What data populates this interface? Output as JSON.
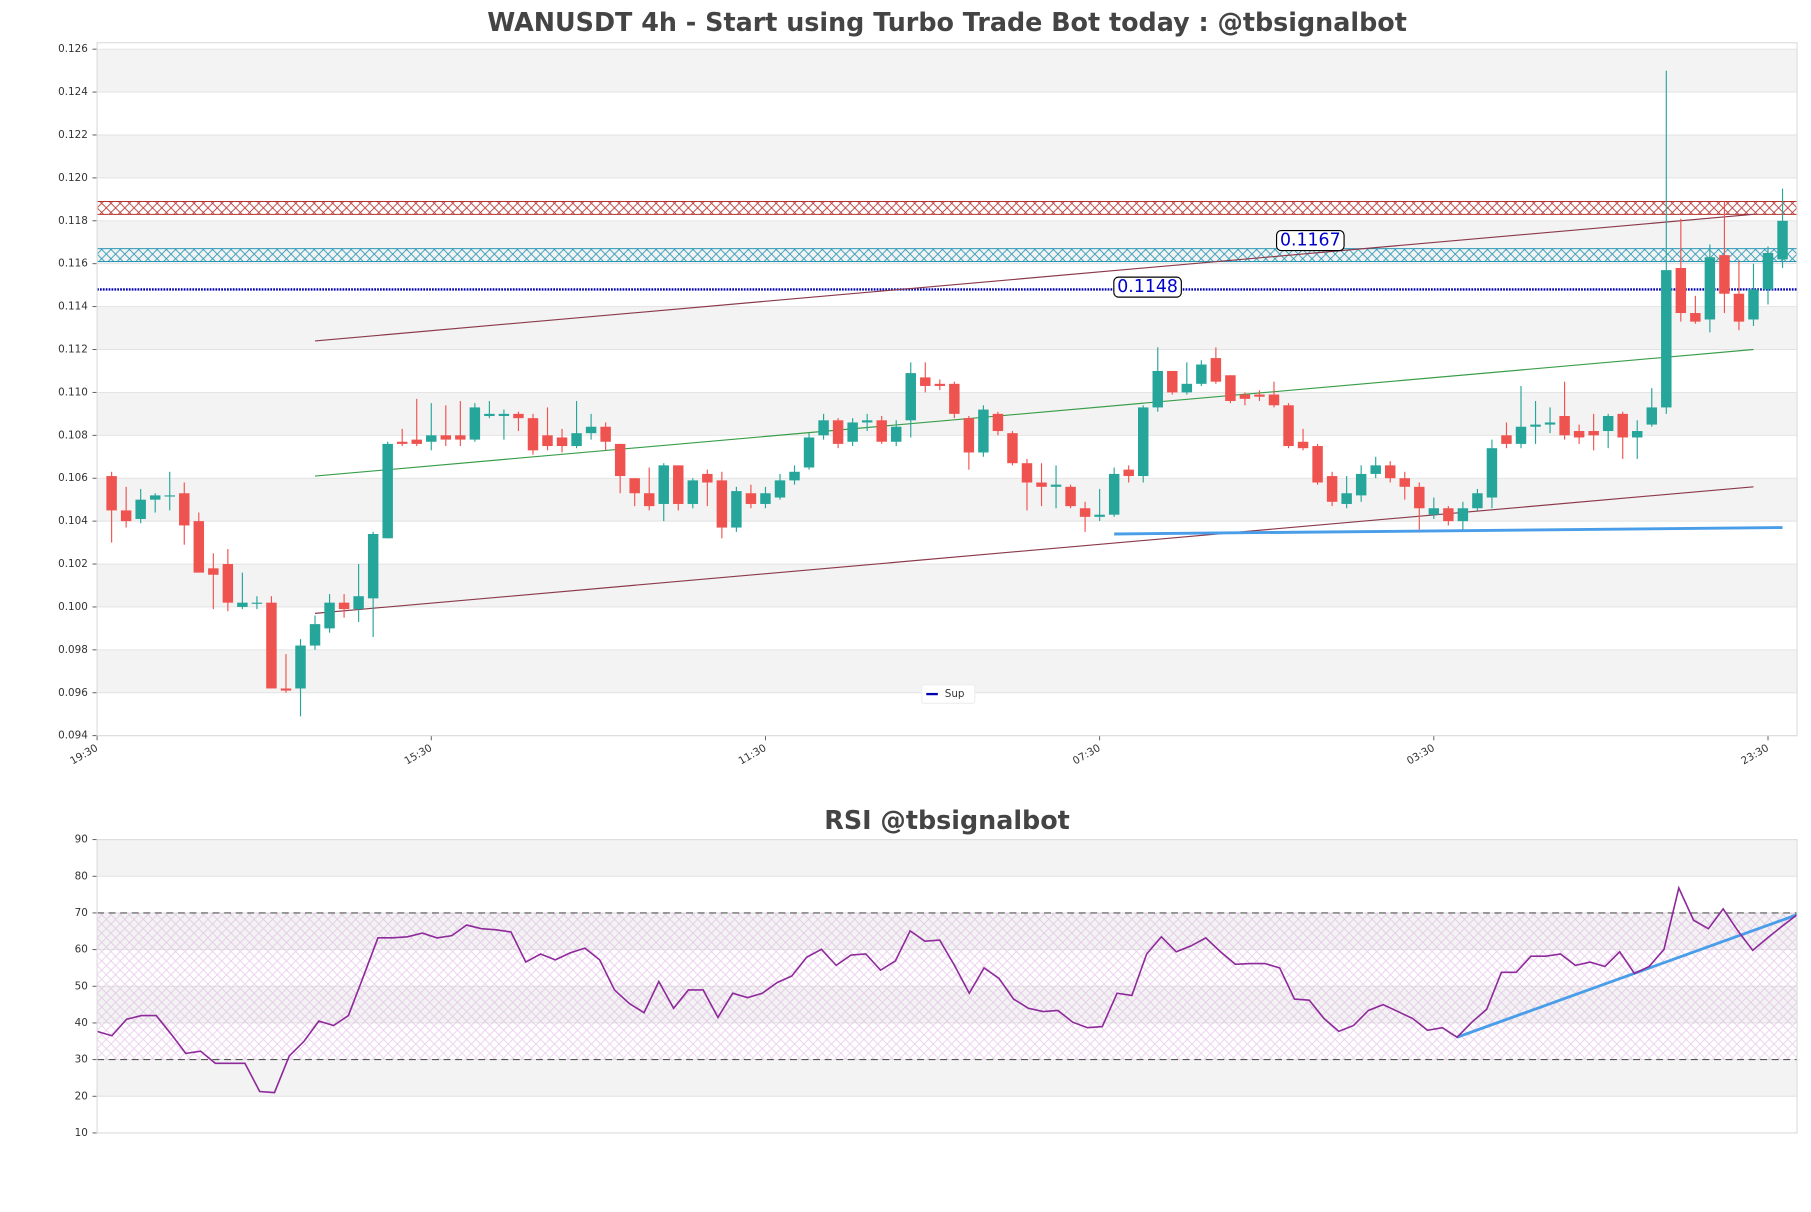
{
  "chart_data": [
    {
      "type": "candlestick",
      "title": "WANUSDT 4h - Start using Turbo Trade Bot today : @tbsignalbot",
      "open": [
        0.1061,
        0.1045,
        0.1041,
        0.105,
        0.1052,
        0.1053,
        0.104,
        0.1018,
        0.102,
        0.1,
        0.1002,
        0.1002,
        0.0962,
        0.0962,
        0.0982,
        0.099,
        0.1002,
        0.0999,
        0.1004,
        0.1032,
        0.1077,
        0.1078,
        0.1077,
        0.108,
        0.108,
        0.1078,
        0.1089,
        0.1089,
        0.109,
        0.1088,
        0.108,
        0.1079,
        0.1075,
        0.1081,
        0.1084,
        0.1076,
        0.106,
        0.1053,
        0.1048,
        0.1066,
        0.1048,
        0.1062,
        0.1059,
        0.1037,
        0.1053,
        0.1048,
        0.1051,
        0.1059,
        0.1065,
        0.108,
        0.1087,
        0.1077,
        0.1086,
        0.1087,
        0.1077,
        0.1087,
        0.1107,
        0.1104,
        0.1104,
        0.1088,
        0.1072,
        0.109,
        0.1081,
        0.1067,
        0.1058,
        0.1056,
        0.1056,
        0.1046,
        0.1042,
        0.1043,
        0.1064,
        0.1061,
        0.1093,
        0.111,
        0.11,
        0.1104,
        0.1116,
        0.1108,
        0.1099,
        0.1099,
        0.1099,
        0.1094,
        0.1077,
        0.1075,
        0.1061,
        0.1048,
        0.1052,
        0.1062,
        0.1066,
        0.106,
        0.1056,
        0.1043,
        0.1046,
        0.104,
        0.1046,
        0.1051,
        0.108,
        0.1076,
        0.1084,
        0.1085,
        0.1089,
        0.1082,
        0.1082,
        0.1082,
        0.109,
        0.1079,
        0.1085,
        0.1093,
        0.1158,
        0.1137,
        0.1134,
        0.1164,
        0.1146,
        0.1134,
        0.1148,
        0.1162
      ],
      "high": [
        0.1063,
        0.1056,
        0.1055,
        0.1053,
        0.1063,
        0.1058,
        0.1044,
        0.1025,
        0.1027,
        0.1016,
        0.1005,
        0.1005,
        0.0978,
        0.0985,
        0.0996,
        0.1006,
        0.1006,
        0.102,
        0.1035,
        0.1077,
        0.1083,
        0.1097,
        0.1095,
        0.1094,
        0.1096,
        0.1095,
        0.1096,
        0.1092,
        0.1091,
        0.109,
        0.1093,
        0.1083,
        0.1096,
        0.109,
        0.1086,
        0.1076,
        0.106,
        0.1065,
        0.1067,
        0.1066,
        0.106,
        0.1064,
        0.1063,
        0.1056,
        0.1057,
        0.1056,
        0.1062,
        0.1066,
        0.1081,
        0.109,
        0.1088,
        0.1088,
        0.109,
        0.1089,
        0.1087,
        0.1114,
        0.1114,
        0.1106,
        0.1105,
        0.1089,
        0.1094,
        0.1091,
        0.1082,
        0.1069,
        0.1067,
        0.1066,
        0.1057,
        0.1049,
        0.1055,
        0.1065,
        0.1066,
        0.1094,
        0.1121,
        0.111,
        0.1114,
        0.1115,
        0.1121,
        0.1108,
        0.11,
        0.1101,
        0.1105,
        0.1095,
        0.1083,
        0.1076,
        0.1063,
        0.1061,
        0.1066,
        0.107,
        0.1068,
        0.1063,
        0.1058,
        0.1051,
        0.1047,
        0.1049,
        0.1055,
        0.1078,
        0.1086,
        0.1103,
        0.1096,
        0.1093,
        0.1105,
        0.1085,
        0.109,
        0.109,
        0.1091,
        0.1087,
        0.1102,
        0.125,
        0.1181,
        0.1145,
        0.1169,
        0.1189,
        0.1161,
        0.116,
        0.1168,
        0.1195
      ],
      "low": [
        0.103,
        0.1037,
        0.1039,
        0.1044,
        0.1045,
        0.1029,
        0.1016,
        0.0999,
        0.0998,
        0.0999,
        0.0999,
        0.0962,
        0.096,
        0.0949,
        0.098,
        0.0988,
        0.0995,
        0.0993,
        0.0986,
        0.1032,
        0.1075,
        0.1075,
        0.1073,
        0.1075,
        0.1075,
        0.1077,
        0.1088,
        0.1078,
        0.1082,
        0.1071,
        0.1073,
        0.1072,
        0.1074,
        0.1078,
        0.1073,
        0.1053,
        0.1047,
        0.1045,
        0.104,
        0.1045,
        0.1046,
        0.1047,
        0.1032,
        0.1035,
        0.1046,
        0.1046,
        0.105,
        0.1057,
        0.1064,
        0.1078,
        0.1074,
        0.1075,
        0.1082,
        0.1076,
        0.1075,
        0.1079,
        0.11,
        0.1101,
        0.1088,
        0.1064,
        0.107,
        0.108,
        0.1066,
        0.1045,
        0.1047,
        0.1046,
        0.1046,
        0.1035,
        0.104,
        0.1042,
        0.1058,
        0.1058,
        0.1091,
        0.1099,
        0.1099,
        0.1103,
        0.1104,
        0.1095,
        0.1094,
        0.1096,
        0.1093,
        0.1074,
        0.1073,
        0.1057,
        0.1047,
        0.1046,
        0.1049,
        0.106,
        0.1058,
        0.105,
        0.1036,
        0.1041,
        0.1038,
        0.1036,
        0.1045,
        0.1046,
        0.1074,
        0.1074,
        0.1076,
        0.1081,
        0.1078,
        0.1076,
        0.1073,
        0.1074,
        0.1069,
        0.1069,
        0.1084,
        0.109,
        0.1133,
        0.1132,
        0.1128,
        0.1137,
        0.1129,
        0.1131,
        0.1141,
        0.1158
      ],
      "close": [
        0.1045,
        0.104,
        0.105,
        0.1052,
        0.1052,
        0.1038,
        0.1016,
        0.1015,
        0.1002,
        0.1002,
        0.1002,
        0.0962,
        0.0961,
        0.0982,
        0.0992,
        0.1002,
        0.0999,
        0.1005,
        0.1034,
        0.1076,
        0.1076,
        0.1076,
        0.108,
        0.1078,
        0.1078,
        0.1093,
        0.109,
        0.109,
        0.1088,
        0.1073,
        0.1075,
        0.1075,
        0.1081,
        0.1084,
        0.1077,
        0.1061,
        0.1053,
        0.1047,
        0.1066,
        0.1048,
        0.1059,
        0.1058,
        0.1037,
        0.1054,
        0.1048,
        0.1053,
        0.1059,
        0.1063,
        0.1079,
        0.1087,
        0.1076,
        0.1086,
        0.1087,
        0.1077,
        0.1084,
        0.1109,
        0.1103,
        0.1103,
        0.109,
        0.1072,
        0.1092,
        0.1082,
        0.1067,
        0.1058,
        0.1056,
        0.1057,
        0.1047,
        0.1042,
        0.1043,
        0.1062,
        0.1061,
        0.1093,
        0.111,
        0.11,
        0.1104,
        0.1113,
        0.1105,
        0.1096,
        0.1097,
        0.1098,
        0.1094,
        0.1075,
        0.1074,
        0.1058,
        0.1049,
        0.1053,
        0.1062,
        0.1066,
        0.106,
        0.1056,
        0.1046,
        0.1046,
        0.104,
        0.1046,
        0.1053,
        0.1074,
        0.1076,
        0.1084,
        0.1085,
        0.1086,
        0.108,
        0.1079,
        0.108,
        0.1089,
        0.1079,
        0.1082,
        0.1093,
        0.1157,
        0.1137,
        0.1133,
        0.1163,
        0.1146,
        0.1133,
        0.1148,
        0.1165,
        0.118
      ],
      "up_color": "#26a69a",
      "down_color": "#ef5350",
      "xlim": [
        -1,
        116
      ],
      "xticks": [
        {
          "value": -1,
          "label": "19:30"
        },
        {
          "value": 22,
          "label": "15:30"
        },
        {
          "value": 45,
          "label": "11:30"
        },
        {
          "value": 68,
          "label": "07:30"
        },
        {
          "value": 91,
          "label": "03:30"
        },
        {
          "value": 114,
          "label": "23:30"
        }
      ],
      "ylim": [
        0.094,
        0.1263
      ],
      "yticks": [
        0.094,
        0.096,
        0.098,
        {
          "value": 0.1,
          "label": "0.100"
        },
        0.102,
        0.104,
        0.106,
        0.108,
        {
          "value": 0.11,
          "label": "0.110"
        },
        0.112,
        0.114,
        0.116,
        0.118,
        {
          "value": 0.12,
          "label": "0.120"
        },
        0.122,
        0.124,
        0.126
      ],
      "zones": [
        {
          "range": [
            0.1183,
            0.1189
          ],
          "color": "#b22222"
        },
        {
          "range": [
            0.1161,
            0.1167
          ],
          "color": "#1a8fb0",
          "label": "0.1167"
        }
      ],
      "levels": [
        {
          "value": 0.1148,
          "label": "0.1148",
          "name": "Sup",
          "color": "#0000b0"
        }
      ],
      "trendlines": [
        {
          "x": [
            14,
            113
          ],
          "y": [
            0.1124,
            0.1183
          ],
          "color": "#8b3a4a"
        },
        {
          "x": [
            14,
            113
          ],
          "y": [
            0.1061,
            0.112
          ],
          "color": "#3a9e4a"
        },
        {
          "x": [
            14,
            113
          ],
          "y": [
            0.0997,
            0.1056
          ],
          "color": "#8b3a4a"
        },
        {
          "x": [
            69,
            115
          ],
          "y": [
            0.1034,
            0.1037
          ],
          "color": "#4a9de8"
        }
      ],
      "legend": "lower center"
    },
    {
      "type": "line",
      "title": "RSI @tbsignalbot",
      "values": [
        37.7,
        36.5,
        41,
        42,
        42,
        37,
        31.7,
        32.3,
        29,
        29,
        29,
        21.3,
        21,
        31,
        35,
        40.5,
        39.3,
        42,
        52.5,
        63.2,
        63.2,
        63.5,
        64.5,
        63.2,
        63.8,
        66.7,
        65.7,
        65.4,
        64.8,
        56.6,
        58.8,
        57.2,
        59.1,
        60.4,
        57.2,
        49,
        45.3,
        42.8,
        51.3,
        44,
        49,
        49,
        41.5,
        48.1,
        46.9,
        48.1,
        51,
        52.8,
        57.9,
        60.1,
        55.7,
        58.5,
        58.8,
        54.4,
        56.9,
        65.1,
        62.3,
        62.6,
        55.7,
        48.1,
        55,
        52.2,
        46.5,
        44,
        43.1,
        43.4,
        40.2,
        38.7,
        39,
        48.1,
        47.5,
        58.8,
        63.5,
        59.4,
        61,
        63.2,
        59.4,
        56,
        56.2,
        56.2,
        55,
        46.5,
        46.2,
        41.2,
        37.7,
        39.3,
        43.4,
        45,
        43.1,
        41.2,
        38,
        38.7,
        36.1,
        40.2,
        43.7,
        53.8,
        53.8,
        58.2,
        58.2,
        58.8,
        55.7,
        56.6,
        55.4,
        59.4,
        53.5,
        55.4,
        60.1,
        76.8,
        68,
        65.7,
        71.1,
        65.1,
        59.8,
        63.2,
        66.4,
        69.5
      ],
      "color": "#8e2a9a",
      "xlim": [
        0,
        115
      ],
      "ylim": [
        10,
        90
      ],
      "yticks": [
        10,
        20,
        30,
        40,
        50,
        60,
        70,
        80,
        90
      ],
      "hlines": [
        30,
        70
      ],
      "fill_between": [
        30,
        70
      ],
      "fill_color": "#d9a6de",
      "trendlines": [
        {
          "x": [
            92,
            115
          ],
          "y": [
            36.1,
            69.5
          ],
          "color": "#4a9de8"
        }
      ]
    }
  ]
}
